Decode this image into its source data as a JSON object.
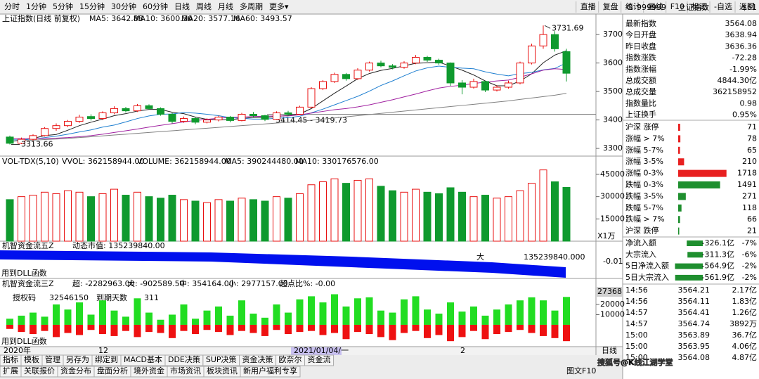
{
  "toolbar": {
    "periods": [
      "分时",
      "1分钟",
      "5分钟",
      "15分钟",
      "30分钟",
      "60分钟",
      "日线",
      "周线",
      "月线",
      "多周期",
      "更多▾"
    ],
    "active": 6,
    "buttons": [
      "直播",
      "复盘",
      "统计",
      "画线",
      "F10",
      "标记",
      "-自选",
      "返回"
    ]
  },
  "kline": {
    "title": "上证指数(日线 前复权)",
    "ylim": [
      3273,
      3767
    ],
    "yticks": [
      3700,
      3600,
      3500,
      3400,
      3300
    ],
    "up_color": "#e81010",
    "down_color": "#0f9a2e",
    "candles": [
      [
        3340,
        3345,
        3313.66,
        3318
      ],
      [
        3318,
        3338,
        3315,
        3332
      ],
      [
        3332,
        3350,
        3328,
        3345
      ],
      [
        3345,
        3375,
        3342,
        3370
      ],
      [
        3370,
        3388,
        3362,
        3380
      ],
      [
        3380,
        3400,
        3375,
        3395
      ],
      [
        3395,
        3418,
        3390,
        3410
      ],
      [
        3412,
        3420,
        3398,
        3405
      ],
      [
        3405,
        3430,
        3400,
        3425
      ],
      [
        3425,
        3448,
        3420,
        3440
      ],
      [
        3440,
        3446,
        3426,
        3432
      ],
      [
        3432,
        3456,
        3428,
        3450
      ],
      [
        3450,
        3455,
        3436,
        3440
      ],
      [
        3440,
        3444,
        3415,
        3420
      ],
      [
        3420,
        3425,
        3388,
        3395
      ],
      [
        3395,
        3412,
        3390,
        3405
      ],
      [
        3405,
        3410,
        3385,
        3392
      ],
      [
        3392,
        3406,
        3388,
        3400
      ],
      [
        3400,
        3415,
        3395,
        3410
      ],
      [
        3410,
        3414,
        3392,
        3398
      ],
      [
        3398,
        3425,
        3395,
        3420
      ],
      [
        3420,
        3428,
        3410,
        3415
      ],
      [
        3415,
        3418,
        3396,
        3402
      ],
      [
        3402,
        3430,
        3400,
        3425
      ],
      [
        3425,
        3432,
        3414,
        3420
      ],
      [
        3420,
        3450,
        3418,
        3445
      ],
      [
        3445,
        3515,
        3442,
        3510
      ],
      [
        3510,
        3540,
        3505,
        3535
      ],
      [
        3535,
        3566,
        3530,
        3560
      ],
      [
        3560,
        3565,
        3538,
        3545
      ],
      [
        3545,
        3582,
        3540,
        3575
      ],
      [
        3575,
        3605,
        3570,
        3600
      ],
      [
        3600,
        3608,
        3585,
        3590
      ],
      [
        3590,
        3596,
        3578,
        3585
      ],
      [
        3585,
        3606,
        3580,
        3600
      ],
      [
        3600,
        3628,
        3596,
        3620
      ],
      [
        3620,
        3625,
        3604,
        3610
      ],
      [
        3610,
        3615,
        3594,
        3600
      ],
      [
        3600,
        3602,
        3520,
        3530
      ],
      [
        3530,
        3540,
        3490,
        3515
      ],
      [
        3515,
        3545,
        3510,
        3535
      ],
      [
        3535,
        3538,
        3498,
        3505
      ],
      [
        3505,
        3522,
        3500,
        3515
      ],
      [
        3515,
        3538,
        3510,
        3530
      ],
      [
        3530,
        3605,
        3525,
        3600
      ],
      [
        3600,
        3668,
        3595,
        3660
      ],
      [
        3660,
        3731.69,
        3650,
        3700
      ],
      [
        3700,
        3712,
        3640,
        3650
      ],
      [
        3640,
        3650,
        3535,
        3564.08
      ]
    ],
    "ma": [
      {
        "name": "MA5",
        "label": "MA5: 3642.88",
        "color": "#222222",
        "values": [
          3325,
          3328,
          3335,
          3345,
          3349,
          3364,
          3380,
          3392,
          3403,
          3415,
          3422,
          3431,
          3437,
          3437,
          3427,
          3422,
          3410,
          3402,
          3400,
          3401,
          3405,
          3409,
          3409,
          3412,
          3416,
          3421,
          3440,
          3467,
          3494,
          3519,
          3545,
          3563,
          3574,
          3581,
          3590,
          3599,
          3601,
          3603,
          3589,
          3575,
          3558,
          3537,
          3520,
          3520,
          3537,
          3562,
          3601,
          3628,
          3642.88
        ]
      },
      {
        "name": "MA10",
        "label": "MA10: 3600.36",
        "color": "#1f7fd0",
        "values": [
          3330,
          3330,
          3333,
          3338,
          3343,
          3350,
          3358,
          3365,
          3375,
          3382,
          3393,
          3405,
          3414,
          3420,
          3421,
          3426,
          3424,
          3420,
          3415,
          3408,
          3406,
          3403,
          3403,
          3406,
          3408,
          3413,
          3425,
          3438,
          3453,
          3468,
          3483,
          3501,
          3521,
          3537,
          3555,
          3572,
          3583,
          3589,
          3585,
          3582,
          3580,
          3569,
          3561,
          3555,
          3563,
          3567,
          3576,
          3581,
          3600.36
        ]
      },
      {
        "name": "MA20",
        "label": "MA20: 3577.16",
        "color": "#a020a0",
        "values": [
          3335,
          3334,
          3334,
          3335,
          3336,
          3338,
          3341,
          3345,
          3350,
          3356,
          3362,
          3368,
          3375,
          3381,
          3387,
          3393,
          3398,
          3402,
          3406,
          3409,
          3410,
          3412,
          3413,
          3414,
          3414,
          3418,
          3424,
          3430,
          3436,
          3440,
          3446,
          3453,
          3462,
          3471,
          3481,
          3491,
          3502,
          3512,
          3518,
          3522,
          3528,
          3533,
          3537,
          3540,
          3550,
          3562,
          3575,
          3580,
          3577.16
        ]
      },
      {
        "name": "MA60",
        "label": "MA60: 3493.57",
        "color": "#808080",
        "values": [
          3325,
          3327,
          3329,
          3331,
          3333,
          3335,
          3338,
          3341,
          3344,
          3347,
          3350,
          3353,
          3356,
          3359,
          3362,
          3365,
          3368,
          3371,
          3374,
          3377,
          3380,
          3383,
          3386,
          3389,
          3392,
          3395,
          3399,
          3403,
          3407,
          3411,
          3415,
          3419,
          3423,
          3427,
          3431,
          3435,
          3439,
          3443,
          3447,
          3451,
          3455,
          3459,
          3463,
          3467,
          3472,
          3477,
          3482,
          3487,
          3493.57
        ]
      }
    ],
    "annotations": {
      "high": "3731.69",
      "low": "3313.66",
      "range": "3414.45 - 3419.73"
    },
    "ref_level": 3419.73
  },
  "volume": {
    "labels": [
      {
        "text": "VOL-TDX(5,10)",
        "color": "#000000"
      },
      {
        "text": "VVOL: 362158944.00",
        "color": "#000000"
      },
      {
        "text": "VOLUME: 362158944.00",
        "color": "#1f5fd0"
      },
      {
        "text": "MA5: 390244480.00",
        "color": "#a020a0"
      },
      {
        "text": "MA10: 330176576.00",
        "color": "#1f7fd0"
      }
    ],
    "unit": "X1万",
    "ylim": [
      0,
      57300
    ],
    "yticks": [
      45000,
      30000,
      15000
    ],
    "values": [
      28000,
      30000,
      31000,
      33000,
      32000,
      34000,
      33000,
      30000,
      32000,
      35000,
      31000,
      33000,
      30000,
      29000,
      31000,
      28000,
      27000,
      26000,
      28000,
      27000,
      29000,
      28000,
      27000,
      30000,
      29000,
      32000,
      38000,
      40000,
      42000,
      39000,
      41000,
      42000,
      37000,
      34000,
      33000,
      35000,
      33000,
      32000,
      36000,
      33000,
      30000,
      31000,
      29000,
      30000,
      34000,
      39000,
      48000,
      40000,
      36216
    ]
  },
  "flow5": {
    "title": "机智资金流五Z",
    "market_value": "动态市值: 135239840.00",
    "big": "大",
    "big_value": "135239840.000",
    "axis": "-0.01",
    "note": "用到DLL函数"
  },
  "flow3": {
    "title": "机智资金流三Z",
    "labels": [
      {
        "text": "超: -2282963.00",
        "color": "#e00000"
      },
      {
        "text": "大: -902589.50",
        "color": "#1f3fd0"
      },
      {
        "text": "中: 354164.00",
        "color": "#e07000"
      },
      {
        "text": "小: 2977157.00",
        "color": "#10a010"
      },
      {
        "text": "超点比%: -0.00",
        "color": "#e00000"
      }
    ],
    "auth": [
      "授权码",
      "32546150",
      "到期天数",
      "311"
    ],
    "note": "用到DLL函数",
    "ylim": [
      -21400,
      45500
    ],
    "yticks": [
      20000,
      10000
    ],
    "inflow": [
      6000,
      9000,
      12000,
      8000,
      20000,
      15000,
      22000,
      10000,
      24000,
      14000,
      8000,
      26000,
      12000,
      5000,
      10000,
      20000,
      6000,
      14000,
      18000,
      9000,
      24000,
      11000,
      7000,
      20000,
      12000,
      25000,
      28000,
      22000,
      30000,
      18000,
      26000,
      27000,
      14000,
      12000,
      25000,
      28000,
      15000,
      11000,
      22000,
      13000,
      18000,
      9000,
      15000,
      20000,
      24000,
      27000,
      24000,
      14000,
      27368
    ],
    "outflow": [
      -4000,
      -7000,
      -9000,
      -6000,
      -12000,
      -8000,
      -10000,
      -5000,
      -9000,
      -11000,
      -6000,
      -12000,
      -7000,
      -8000,
      -13000,
      -6000,
      -9000,
      -5000,
      -7000,
      -10000,
      -6000,
      -8000,
      -11000,
      -5000,
      -9000,
      -7000,
      -6000,
      -10000,
      -8000,
      -14000,
      -7000,
      -9000,
      -12000,
      -15000,
      -8000,
      -6000,
      -13000,
      -10000,
      -16000,
      -12000,
      -6000,
      -14000,
      -9000,
      -7000,
      -5000,
      -8000,
      -11000,
      -13000,
      -16000
    ]
  },
  "datebar": {
    "labels": [
      "2020年",
      "12",
      "2021/01/04/一",
      "2"
    ],
    "period": "日线"
  },
  "tabs": {
    "row1": [
      "指标",
      "模板",
      "管理",
      "另存为",
      "绑定到",
      "MACD基本",
      "DDE决策",
      "SUP决策",
      "资金决策",
      "欧奈尔",
      "资金流"
    ],
    "row2": [
      "扩展",
      "关联报价",
      "资金分布",
      "盘面分析",
      "境外资金",
      "市场资讯",
      "板块资讯",
      "新用户福利专享"
    ],
    "corner": "图文F10"
  },
  "quote": {
    "flag": "G",
    "code": "999999",
    "name": "上证指数",
    "tag": "$61",
    "stats": [
      {
        "label": "最新指数",
        "value": "3564.08",
        "color": "#0a9a0a"
      },
      {
        "label": "今日开盘",
        "value": "3638.94",
        "color": "#e00000"
      },
      {
        "label": "昨日收盘",
        "value": "3636.36",
        "color": "#000000"
      },
      {
        "label": "指数涨跌",
        "value": "-72.28",
        "color": "#0a9a0a"
      },
      {
        "label": "指数涨幅",
        "value": "-1.99%",
        "color": "#0a9a0a"
      },
      {
        "label": "总成交额",
        "value": "4844.30亿",
        "color": "#000000"
      },
      {
        "label": "总成交量",
        "value": "362158952",
        "color": "#000000"
      },
      {
        "label": "指数量比",
        "value": "0.98",
        "color": "#0a9a0a"
      },
      {
        "label": "上证换手",
        "value": "0.95%",
        "color": "#000000"
      }
    ],
    "breadth": [
      {
        "label": "沪深 涨停",
        "count": 71,
        "color": "#e82020"
      },
      {
        "label": "涨幅 > 7%",
        "count": 78,
        "color": "#e82020"
      },
      {
        "label": "涨幅 5-7%",
        "count": 65,
        "color": "#e82020"
      },
      {
        "label": "涨幅 3-5%",
        "count": 210,
        "color": "#e82020"
      },
      {
        "label": "涨幅 0-3%",
        "count": 1718,
        "color": "#e82020"
      },
      {
        "label": "跌幅 0-3%",
        "count": 1491,
        "color": "#1f8f2f"
      },
      {
        "label": "跌幅 3-5%",
        "count": 271,
        "color": "#1f8f2f"
      },
      {
        "label": "跌幅 5-7%",
        "count": 118,
        "color": "#1f8f2f"
      },
      {
        "label": "跌幅 > 7%",
        "count": 66,
        "color": "#1f8f2f"
      },
      {
        "label": "沪深 跌停",
        "count": 21,
        "color": "#1f8f2f"
      }
    ],
    "flows": [
      {
        "label": "净流入额",
        "value": -326.1,
        "value_label": "-326.1亿",
        "pct_label": "-7%"
      },
      {
        "label": "大宗流入",
        "value": -311.3,
        "value_label": "-311.3亿",
        "pct_label": "-6%"
      },
      {
        "label": "5日净流入额",
        "value": -564.9,
        "value_label": "-564.9亿",
        "pct_label": "-2%"
      },
      {
        "label": "5日大宗流入",
        "value": -561.9,
        "value_label": "-561.9亿",
        "pct_label": "-2%"
      }
    ],
    "ticks": [
      [
        "14:56",
        "3564.21",
        "2.17亿"
      ],
      [
        "14:56",
        "3564.11",
        "1.83亿"
      ],
      [
        "14:57",
        "3564.41",
        "1.26亿"
      ],
      [
        "14:57",
        "3564.74",
        "3892万"
      ],
      [
        "15:00",
        "3563.89",
        "36.7亿"
      ],
      [
        "15:00",
        "3563.95",
        "4.06亿"
      ],
      [
        "15:00",
        "3564.08",
        "4.87亿"
      ]
    ]
  },
  "watermark": "搜狐号@K线江湖学堂"
}
